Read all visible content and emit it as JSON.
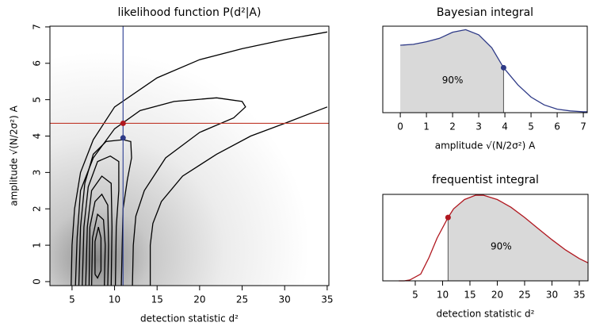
{
  "chart_data": [
    {
      "type": "contour",
      "title": "likelihood function P(d²|A)",
      "x_label": "detection statistic d²",
      "y_label": "amplitude √(N/2σ²) A",
      "xlim": [
        2.4,
        35.2
      ],
      "ylim": [
        -0.11,
        7.02
      ],
      "xticks": [
        5,
        10,
        15,
        20,
        25,
        30,
        35
      ],
      "yticks": [
        0,
        1,
        2,
        3,
        4,
        5,
        6,
        7
      ],
      "contour_color": "#000000",
      "contours": [
        {
          "x": [
            35,
            30,
            25,
            20,
            15,
            10,
            7.5,
            6,
            5.3,
            5,
            4.9,
            null,
            14.2,
            14.2,
            14.5,
            15.5,
            18,
            22,
            26,
            30,
            35
          ],
          "y": [
            6.86,
            6.65,
            6.4,
            6.1,
            5.6,
            4.8,
            3.9,
            3,
            2,
            1,
            -0.1,
            null,
            -0.1,
            1,
            1.6,
            2.2,
            2.9,
            3.5,
            4,
            4.35,
            4.8
          ]
        },
        {
          "x": [
            5.4,
            5.6,
            6,
            7.5,
            10,
            13,
            17,
            22,
            25,
            25.4,
            24,
            20,
            16,
            13.5,
            12.5,
            12.2,
            12.1
          ],
          "y": [
            -0.1,
            1.2,
            2.5,
            3.4,
            4.2,
            4.7,
            4.95,
            5.05,
            4.95,
            4.8,
            4.5,
            4.1,
            3.4,
            2.5,
            1.8,
            1,
            -0.1
          ]
        },
        {
          "x": [
            5.8,
            6,
            6.5,
            7.5,
            9,
            11,
            11.9,
            12,
            11.5,
            11,
            10.9,
            10.8
          ],
          "y": [
            -0.1,
            1.5,
            2.7,
            3.5,
            3.85,
            3.9,
            3.85,
            3.4,
            2.8,
            2,
            1,
            -0.1
          ]
        },
        {
          "x": [
            6.2,
            6.4,
            6.9,
            8,
            9.5,
            10.5,
            10.5,
            10.2,
            10.1
          ],
          "y": [
            -0.1,
            1.5,
            2.6,
            3.3,
            3.45,
            3.3,
            2.5,
            1.5,
            -0.1
          ]
        },
        {
          "x": [
            6.6,
            6.8,
            7.3,
            8.5,
            9.6,
            9.7,
            9.6
          ],
          "y": [
            -0.1,
            1.5,
            2.5,
            2.9,
            2.7,
            1.5,
            -0.1
          ]
        },
        {
          "x": [
            7,
            7.1,
            7.7,
            8.5,
            9.2,
            9.3,
            9.2
          ],
          "y": [
            -0.1,
            1.5,
            2.2,
            2.4,
            2.1,
            1,
            -0.1
          ]
        },
        {
          "x": [
            7.3,
            7.4,
            8,
            8.7,
            8.9,
            8.8
          ],
          "y": [
            -0.1,
            1.2,
            1.85,
            1.7,
            1,
            -0.1
          ]
        },
        {
          "x": [
            7.7,
            7.7,
            8.1,
            8.4,
            8.4,
            8,
            7.7
          ],
          "y": [
            0.2,
            1.1,
            1.5,
            1.2,
            0.3,
            0.1,
            0.2
          ]
        }
      ],
      "vline": {
        "x": 11,
        "color": "#3a4a9a"
      },
      "hline": {
        "y": 4.35,
        "color": "#c0392b"
      },
      "points": [
        {
          "x": 11,
          "y": 4.35,
          "color": "#b0171f"
        },
        {
          "x": 11,
          "y": 3.95,
          "color": "#2e3a87"
        }
      ]
    },
    {
      "type": "density",
      "title": "Bayesian integral",
      "x_label": "amplitude √(N/2σ²) A",
      "xlim": [
        -0.67,
        7.15
      ],
      "ylim": [
        0,
        1
      ],
      "xticks": [
        0,
        1,
        2,
        3,
        4,
        5,
        6,
        7
      ],
      "x": [
        0,
        0.5,
        1,
        1.5,
        2,
        2.5,
        3,
        3.5,
        3.95,
        4.5,
        5,
        5.5,
        6,
        6.5,
        7,
        7.15
      ],
      "values": [
        0.78,
        0.79,
        0.82,
        0.86,
        0.93,
        0.96,
        0.9,
        0.75,
        0.52,
        0.32,
        0.18,
        0.09,
        0.04,
        0.02,
        0.01,
        0.01
      ],
      "color": "#2e3a87",
      "shade_color": "#d9d9d9",
      "shade_side": "left",
      "marker": {
        "x": 3.95,
        "y": 0.52
      },
      "annotation": {
        "text": "90%",
        "x": 2,
        "y": 0.37
      }
    },
    {
      "type": "density",
      "title": "frequentist integral",
      "x_label": "detection statistic d²",
      "xlim": [
        -0.94,
        36.6
      ],
      "ylim": [
        0,
        1.01
      ],
      "xticks": [
        5,
        10,
        15,
        20,
        25,
        30,
        35
      ],
      "x": [
        2,
        3,
        4,
        6,
        7.5,
        9,
        11,
        12,
        14,
        16,
        17.5,
        20,
        22.5,
        25,
        27.5,
        30,
        32.5,
        35,
        36.6
      ],
      "values": [
        0,
        0,
        0.01,
        0.08,
        0.27,
        0.5,
        0.74,
        0.84,
        0.95,
        1.0,
        1.0,
        0.95,
        0.86,
        0.74,
        0.61,
        0.48,
        0.36,
        0.26,
        0.21
      ],
      "color": "#b0171f",
      "shade_color": "#d9d9d9",
      "shade_side": "right",
      "marker": {
        "x": 11,
        "y": 0.74
      },
      "annotation": {
        "text": "90%",
        "x": 20.7,
        "y": 0.4
      }
    }
  ]
}
